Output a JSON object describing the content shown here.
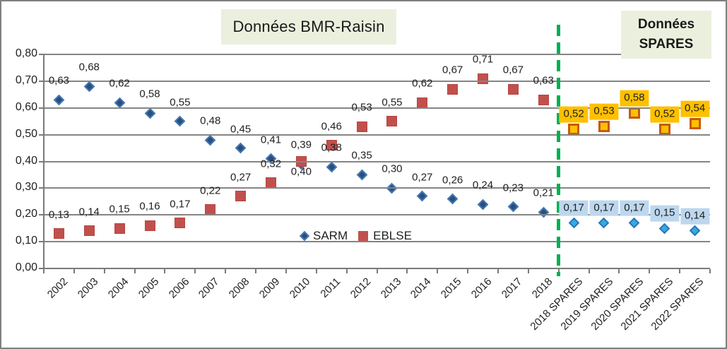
{
  "chart_data": {
    "type": "scatter",
    "title_left": "Données BMR-Raisin",
    "title_right": "Données SPARES",
    "categories": [
      "2002",
      "2003",
      "2004",
      "2005",
      "2006",
      "2007",
      "2008",
      "2009",
      "2010",
      "2011",
      "2012",
      "2013",
      "2014",
      "2015",
      "2016",
      "2017",
      "2018",
      "2018 SPARES",
      "2019 SPARES",
      "2020 SPARES",
      "2021 SPARES",
      "2022 SPARES"
    ],
    "ylim": [
      0,
      0.8
    ],
    "ytick_step": 0.1,
    "ytick_labels": [
      "0,00",
      "0,10",
      "0,20",
      "0,30",
      "0,40",
      "0,50",
      "0,60",
      "0,70",
      "0,80"
    ],
    "decimal_separator": ",",
    "grid": true,
    "legend_position": "inside-bottom-center",
    "legend": [
      {
        "name": "SARM",
        "marker": "diamond"
      },
      {
        "name": "EBLSE",
        "marker": "square"
      }
    ],
    "series": [
      {
        "id": "sarm-bmr",
        "name": "SARM",
        "segment": "BMR-Raisin",
        "marker": "diamond",
        "fill": "#2a4f7e",
        "stroke": "#4379b2",
        "start_index": 0,
        "values": [
          0.63,
          0.68,
          0.62,
          0.58,
          0.55,
          0.48,
          0.45,
          0.41,
          0.39,
          0.38,
          0.35,
          0.3,
          0.27,
          0.26,
          0.24,
          0.23,
          0.21
        ]
      },
      {
        "id": "eblse-bmr",
        "name": "EBLSE",
        "segment": "BMR-Raisin",
        "marker": "square",
        "fill": "#c0504d",
        "stroke": "#b8453f",
        "start_index": 0,
        "values": [
          0.13,
          0.14,
          0.15,
          0.16,
          0.17,
          0.22,
          0.27,
          0.32,
          0.4,
          0.46,
          0.53,
          0.55,
          0.62,
          0.67,
          0.71,
          0.67,
          0.63
        ],
        "label_below_indices": [
          8
        ]
      },
      {
        "id": "sarm-spares",
        "name": "SARM",
        "segment": "SPARES",
        "marker": "diamond",
        "fill": "#33ace3",
        "stroke": "#2e75b6",
        "start_index": 17,
        "values": [
          0.17,
          0.17,
          0.17,
          0.15,
          0.14
        ],
        "label_bg": "#bdd7ee"
      },
      {
        "id": "eblse-spares",
        "name": "EBLSE",
        "segment": "SPARES",
        "marker": "square",
        "fill": "#ffc000",
        "stroke": "#c55a11",
        "start_index": 17,
        "values": [
          0.52,
          0.53,
          0.58,
          0.52,
          0.54
        ],
        "label_bg": "#ffc000"
      }
    ],
    "divider": {
      "after_category": "2018",
      "color": "#00b050",
      "style": "dashed"
    }
  },
  "colors": {
    "title_bg": "#ebf0de",
    "grid": "#858585",
    "axis": "#7a7a7a",
    "label_text": "#1f1f1f"
  }
}
